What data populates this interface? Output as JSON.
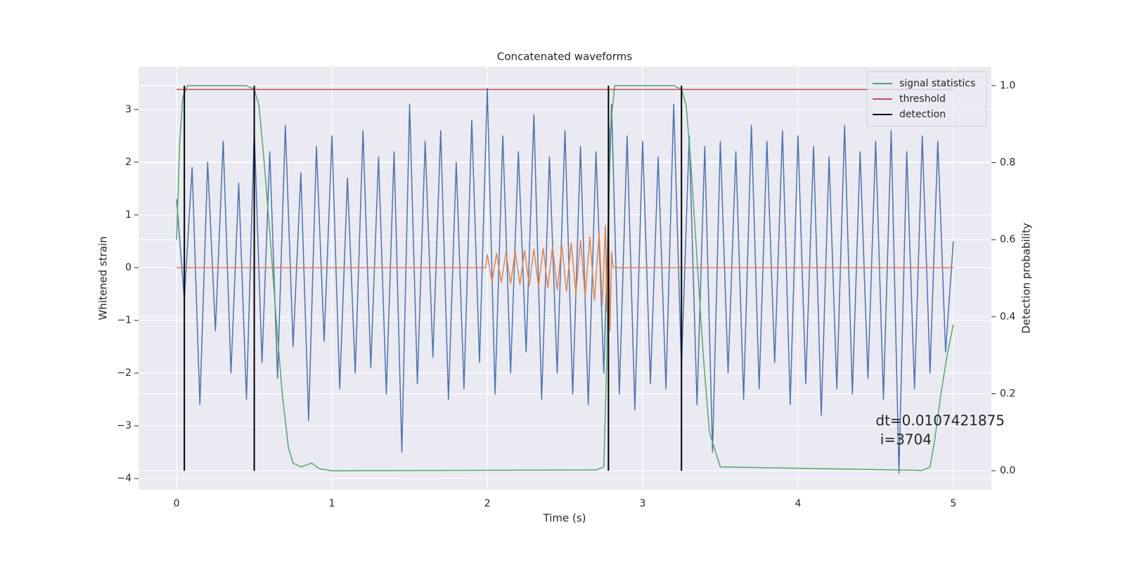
{
  "chart_data": {
    "type": "line",
    "title": "Concatenated waveforms",
    "xlabel": "Time (s)",
    "ylabel": "Whitened strain",
    "y2label": "Detection probability",
    "xlim": [
      -0.245,
      5.245
    ],
    "ylim": [
      -4.21,
      3.81
    ],
    "y2lim": [
      -0.049,
      1.049
    ],
    "xticks": [
      0,
      1,
      2,
      3,
      4,
      5
    ],
    "yticks": [
      {
        "value": -4,
        "label": "−4"
      },
      {
        "value": -3,
        "label": "−3"
      },
      {
        "value": -2,
        "label": "−2"
      },
      {
        "value": -1,
        "label": "−1"
      },
      0,
      1,
      2,
      3
    ],
    "y2ticks": [
      {
        "value": 0,
        "label": "0.0"
      },
      0.2,
      0.4,
      0.6,
      0.8,
      {
        "value": 1,
        "label": "1.0"
      }
    ],
    "grid": true,
    "legend": "upper right",
    "annotation": [
      "dt=0.0107421875",
      " i=3704"
    ],
    "annotation_at": [
      4.5,
      -3.0
    ],
    "series": [
      {
        "color": "#4c72b0",
        "x": [
          0,
          0.05,
          0.1,
          0.15,
          0.2,
          0.25,
          0.3,
          0.35,
          0.4,
          0.45,
          0.5,
          0.55,
          0.6,
          0.65,
          0.7,
          0.75,
          0.8,
          0.85,
          0.9,
          0.95,
          1.0,
          1.05,
          1.1,
          1.15,
          1.2,
          1.25,
          1.3,
          1.35,
          1.4,
          1.45,
          1.5,
          1.55,
          1.6,
          1.65,
          1.7,
          1.75,
          1.8,
          1.85,
          1.9,
          1.95,
          2.0,
          2.05,
          2.1,
          2.15,
          2.2,
          2.25,
          2.3,
          2.35,
          2.4,
          2.45,
          2.5,
          2.55,
          2.6,
          2.65,
          2.7,
          2.75,
          2.8,
          2.85,
          2.9,
          2.95,
          3.0,
          3.05,
          3.1,
          3.15,
          3.2,
          3.25,
          3.3,
          3.35,
          3.4,
          3.45,
          3.5,
          3.55,
          3.6,
          3.65,
          3.7,
          3.75,
          3.8,
          3.85,
          3.9,
          3.95,
          4.0,
          4.05,
          4.1,
          4.15,
          4.2,
          4.25,
          4.3,
          4.35,
          4.4,
          4.45,
          4.5,
          4.55,
          4.6,
          4.65,
          4.7,
          4.75,
          4.8,
          4.85,
          4.9,
          4.95,
          5.0
        ],
        "values": [
          1.3,
          -0.6,
          1.9,
          -2.6,
          2.0,
          -1.2,
          2.4,
          -2.0,
          1.6,
          -2.5,
          2.6,
          -1.8,
          2.2,
          -2.1,
          2.7,
          -1.5,
          1.8,
          -2.9,
          2.3,
          -1.4,
          2.5,
          -2.3,
          1.7,
          -2.0,
          2.6,
          -1.9,
          2.1,
          -2.4,
          2.2,
          -3.5,
          3.1,
          -2.2,
          2.4,
          -1.7,
          2.6,
          -2.5,
          2.0,
          -2.3,
          2.8,
          -1.8,
          3.4,
          -2.4,
          2.5,
          -2.0,
          2.2,
          -1.6,
          2.9,
          -2.5,
          2.1,
          -2.0,
          2.6,
          -2.4,
          2.3,
          -2.6,
          2.2,
          -2.0,
          3.1,
          -2.4,
          2.5,
          -2.7,
          2.4,
          -2.2,
          2.1,
          -2.3,
          3.1,
          -1.9,
          2.5,
          -2.6,
          2.3,
          -3.5,
          2.4,
          -2.0,
          2.2,
          -2.5,
          2.7,
          -2.3,
          2.4,
          -1.8,
          2.6,
          -2.6,
          2.5,
          -2.2,
          2.3,
          -2.8,
          2.1,
          -2.3,
          2.7,
          -2.4,
          2.2,
          -2.1,
          2.4,
          -2.5,
          2.6,
          -3.9,
          2.2,
          -2.3,
          2.5,
          -2.0,
          2.4,
          -1.6,
          0.5
        ]
      },
      {
        "color": "#dd8452",
        "x": [
          0,
          1.99,
          2.0,
          2.03,
          2.06,
          2.09,
          2.12,
          2.15,
          2.18,
          2.21,
          2.24,
          2.27,
          2.3,
          2.33,
          2.36,
          2.39,
          2.42,
          2.45,
          2.48,
          2.51,
          2.54,
          2.57,
          2.6,
          2.63,
          2.66,
          2.69,
          2.72,
          2.74,
          2.76,
          2.77,
          2.78,
          2.79,
          2.8,
          2.81,
          5.0
        ],
        "values": [
          0,
          0,
          0.25,
          -0.26,
          0.27,
          -0.28,
          0.29,
          -0.3,
          0.31,
          -0.32,
          0.33,
          -0.34,
          0.35,
          -0.36,
          0.37,
          -0.38,
          0.4,
          -0.42,
          0.43,
          -0.45,
          0.47,
          -0.49,
          0.52,
          -0.55,
          0.58,
          -0.62,
          0.67,
          -0.72,
          0.8,
          -0.85,
          1.0,
          -1.2,
          0.3,
          0,
          0
        ]
      },
      {
        "name": "signal statistics",
        "color": "#55a868",
        "axis": "y2",
        "x": [
          0,
          0.02,
          0.04,
          0.07,
          0.1,
          0.45,
          0.5,
          0.53,
          0.56,
          0.6,
          0.64,
          0.68,
          0.72,
          0.75,
          0.8,
          0.87,
          0.92,
          1.0,
          2.7,
          2.75,
          2.77,
          2.79,
          2.82,
          3.2,
          3.25,
          3.28,
          3.31,
          3.35,
          3.39,
          3.43,
          3.5,
          4.8,
          4.85,
          4.88,
          4.92,
          4.96,
          5.0
        ],
        "values": [
          0.6,
          0.85,
          0.97,
          1.0,
          1.0,
          1.0,
          0.99,
          0.95,
          0.82,
          0.62,
          0.4,
          0.2,
          0.06,
          0.02,
          0.01,
          0.02,
          0.005,
          0.0,
          0.002,
          0.01,
          0.3,
          0.88,
          1.0,
          1.0,
          0.99,
          0.95,
          0.8,
          0.55,
          0.3,
          0.1,
          0.01,
          0.001,
          0.01,
          0.08,
          0.2,
          0.3,
          0.38
        ]
      },
      {
        "name": "threshold",
        "color": "#c44e52",
        "axis": "y2",
        "x": [
          0,
          5
        ],
        "values": [
          0.99,
          0.99
        ]
      },
      {
        "name": "detection",
        "color": "#000000",
        "axis": "y2",
        "style": "vlines",
        "x": [
          0.05,
          0.5,
          2.78,
          3.25
        ],
        "values": [
          1.0,
          1.0,
          1.0,
          1.0
        ]
      }
    ]
  }
}
